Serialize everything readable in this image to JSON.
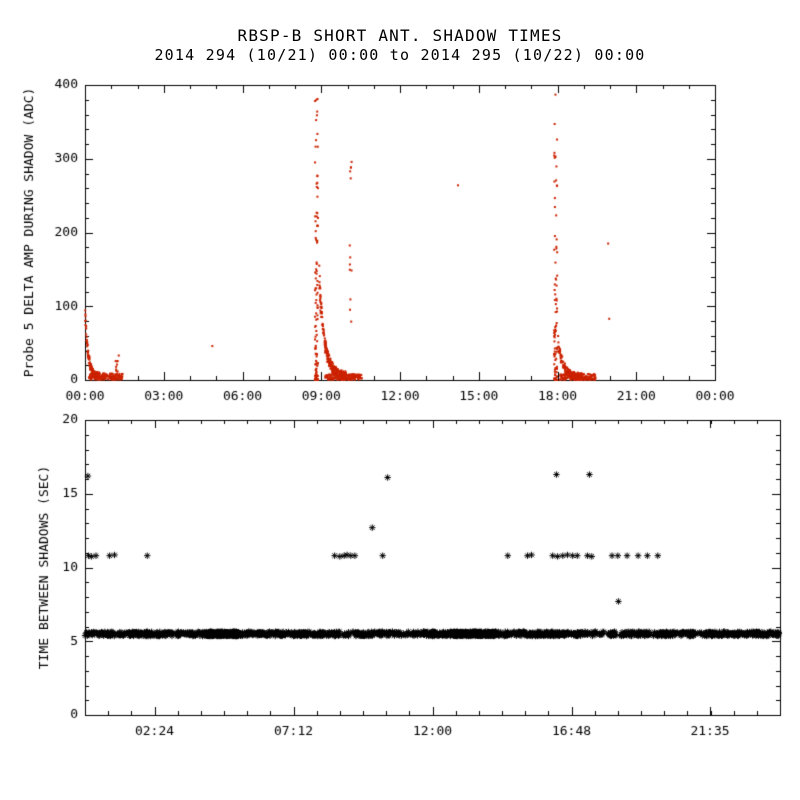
{
  "title": "RBSP-B SHORT ANT. SHADOW TIMES",
  "subtitle": "2014 294 (10/21) 00:00 to 2014 295 (10/22) 00:00",
  "colors": {
    "points_top": "#cc2200",
    "points_bottom": "#000000",
    "frame": "#000000",
    "background": "#ffffff"
  },
  "chart_data": [
    {
      "id": "delta-amp-panel",
      "type": "scatter",
      "title": "RBSP-B SHORT ANT. SHADOW TIMES",
      "subtitle": "2014 294 (10/21) 00:00 to 2014 295 (10/22) 00:00",
      "xlabel": "",
      "ylabel": "Probe 5 DELTA AMP DURING SHADOW (ADC)",
      "xlim": [
        0,
        24
      ],
      "ylim": [
        0,
        400
      ],
      "x_ticks": [
        {
          "v": 0,
          "label": "00:00"
        },
        {
          "v": 3,
          "label": "03:00"
        },
        {
          "v": 6,
          "label": "06:00"
        },
        {
          "v": 9,
          "label": "09:00"
        },
        {
          "v": 12,
          "label": "12:00"
        },
        {
          "v": 15,
          "label": "15:00"
        },
        {
          "v": 18,
          "label": "18:00"
        },
        {
          "v": 21,
          "label": "21:00"
        },
        {
          "v": 24,
          "label": "00:00"
        }
      ],
      "x_minor_step": 1,
      "y_ticks": [
        {
          "v": 0,
          "label": "0"
        },
        {
          "v": 100,
          "label": "100"
        },
        {
          "v": 200,
          "label": "200"
        },
        {
          "v": 300,
          "label": "300"
        },
        {
          "v": 400,
          "label": "400"
        }
      ],
      "y_minor_step": 20,
      "marker": "dot",
      "color": "#cc2200",
      "clusters": [
        {
          "type": "decay",
          "x0": 0.0,
          "x1": 0.55,
          "y0": 95,
          "y1": 5,
          "spread": 8,
          "n": 150
        },
        {
          "type": "band",
          "x0": 0.15,
          "x1": 1.45,
          "ymin": 0,
          "ymax": 9,
          "n": 150
        },
        {
          "type": "column",
          "x": 1.22,
          "jitter": 0.07,
          "ymin": 0,
          "ymax": 38,
          "p": 1.6,
          "n": 14
        },
        {
          "type": "column",
          "x": 8.82,
          "jitter": 0.06,
          "ymin": 0,
          "ymax": 385,
          "p": 2.3,
          "n": 110
        },
        {
          "type": "decay",
          "x0": 8.92,
          "x1": 9.95,
          "y0": 138,
          "y1": 5,
          "spread": 12,
          "n": 260
        },
        {
          "type": "band",
          "x0": 9.15,
          "x1": 10.55,
          "ymin": 0,
          "ymax": 8,
          "n": 170
        },
        {
          "type": "column",
          "x": 10.12,
          "jitter": 0.04,
          "ymin": 10,
          "ymax": 302,
          "p": 1.7,
          "n": 13
        },
        {
          "type": "column",
          "x": 17.93,
          "jitter": 0.06,
          "ymin": 0,
          "ymax": 390,
          "p": 2.3,
          "n": 85
        },
        {
          "type": "decay",
          "x0": 18.02,
          "x1": 18.95,
          "y0": 55,
          "y1": 4,
          "spread": 10,
          "n": 170
        },
        {
          "type": "band",
          "x0": 18.1,
          "x1": 19.45,
          "ymin": 0,
          "ymax": 8,
          "n": 150
        }
      ],
      "points": [
        [
          4.85,
          46
        ],
        [
          14.21,
          264
        ],
        [
          19.93,
          185
        ],
        [
          19.97,
          83
        ]
      ]
    },
    {
      "id": "time-between-panel",
      "type": "scatter",
      "title": "",
      "xlabel": "",
      "ylabel": "TIME BETWEEN SHADOWS (SEC)",
      "xlim": [
        0,
        24
      ],
      "ylim": [
        0,
        20
      ],
      "x_ticks": [
        {
          "v": 2.4,
          "label": "02:24"
        },
        {
          "v": 7.2,
          "label": "07:12"
        },
        {
          "v": 12.0,
          "label": "12:00"
        },
        {
          "v": 16.8,
          "label": "16:48"
        },
        {
          "v": 21.583,
          "label": "21:35"
        }
      ],
      "x_minor_step": 0.8,
      "y_ticks": [
        {
          "v": 0,
          "label": "0"
        },
        {
          "v": 5,
          "label": "5"
        },
        {
          "v": 10,
          "label": "10"
        },
        {
          "v": 15,
          "label": "15"
        },
        {
          "v": 20,
          "label": "20"
        }
      ],
      "y_minor_step": 1,
      "marker": "asterisk",
      "color": "#000000",
      "clusters": [
        {
          "type": "band",
          "x0": 0.0,
          "x1": 24.0,
          "ymin": 5.35,
          "ymax": 5.65,
          "n": 1500,
          "gaps": [
            [
              8.8,
              8.92
            ],
            [
              9.12,
              9.24
            ],
            [
              10.3,
              10.4
            ],
            [
              17.92,
              18.06
            ],
            [
              18.34,
              18.5
            ],
            [
              19.5,
              19.62
            ]
          ]
        },
        {
          "type": "band",
          "x0": 4.2,
          "x1": 5.3,
          "ymin": 5.35,
          "ymax": 5.65,
          "n": 220
        },
        {
          "type": "band",
          "x0": 12.6,
          "x1": 14.2,
          "ymin": 5.35,
          "ymax": 5.65,
          "n": 260
        }
      ],
      "points": [
        [
          0.12,
          10.8
        ],
        [
          0.22,
          10.75
        ],
        [
          0.38,
          10.8
        ],
        [
          0.85,
          10.8
        ],
        [
          1.02,
          10.85
        ],
        [
          2.15,
          10.8
        ],
        [
          8.62,
          10.8
        ],
        [
          8.8,
          10.75
        ],
        [
          8.95,
          10.8
        ],
        [
          9.05,
          10.85
        ],
        [
          9.18,
          10.8
        ],
        [
          9.32,
          10.8
        ],
        [
          10.28,
          10.8
        ],
        [
          14.6,
          10.8
        ],
        [
          15.28,
          10.8
        ],
        [
          15.42,
          10.85
        ],
        [
          16.15,
          10.8
        ],
        [
          16.32,
          10.75
        ],
        [
          16.5,
          10.8
        ],
        [
          16.66,
          10.85
        ],
        [
          16.84,
          10.8
        ],
        [
          17.0,
          10.8
        ],
        [
          17.35,
          10.8
        ],
        [
          17.5,
          10.75
        ],
        [
          18.2,
          10.8
        ],
        [
          18.4,
          10.8
        ],
        [
          18.72,
          10.8
        ],
        [
          19.1,
          10.8
        ],
        [
          19.42,
          10.8
        ],
        [
          19.78,
          10.8
        ],
        [
          0.1,
          16.2
        ],
        [
          10.45,
          16.1
        ],
        [
          16.28,
          16.3
        ],
        [
          17.42,
          16.3
        ],
        [
          9.92,
          12.7
        ],
        [
          18.42,
          7.7
        ]
      ]
    }
  ]
}
